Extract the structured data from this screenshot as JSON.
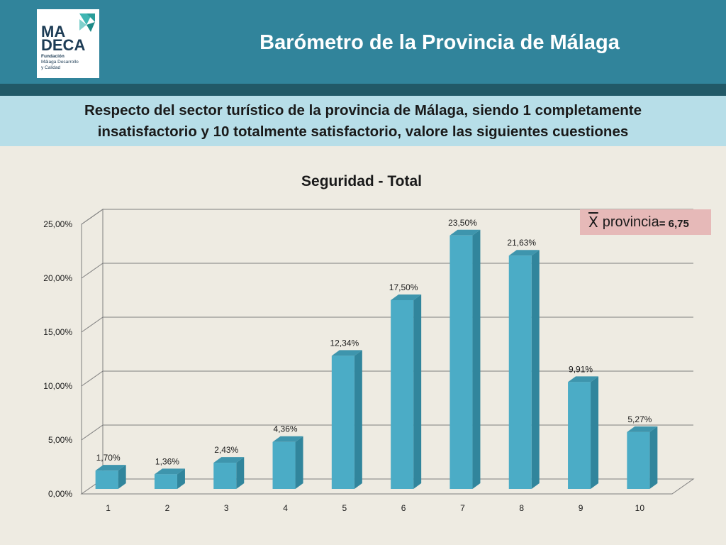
{
  "header": {
    "title": "Barómetro de la Provincia de Málaga",
    "logo_line1": "MA",
    "logo_line2": "DECA",
    "logo_sub1": "Fundación",
    "logo_sub2": "Málaga Desarrollo",
    "logo_sub3": "y Calidad",
    "color": "#31849b",
    "stripe_color": "#215967"
  },
  "question": {
    "line1": "Respecto del sector turístico de la provincia de Málaga, siendo 1 completamente",
    "line2": "insatisfactorio y 10 totalmente satisfactorio, valore las siguientes cuestiones"
  },
  "mean_badge": {
    "symbol": "X",
    "label": "provincia",
    "value": "= 6,75"
  },
  "chart_data": {
    "type": "bar",
    "title": "Seguridad - Total",
    "xlabel": "",
    "ylabel": "",
    "categories": [
      "1",
      "2",
      "3",
      "4",
      "5",
      "6",
      "7",
      "8",
      "9",
      "10"
    ],
    "values": [
      1.7,
      1.36,
      2.43,
      4.36,
      12.34,
      17.5,
      23.5,
      21.63,
      9.91,
      5.27
    ],
    "data_labels": [
      "1,70%",
      "1,36%",
      "2,43%",
      "4,36%",
      "12,34%",
      "17,50%",
      "23,50%",
      "21,63%",
      "9,91%",
      "5,27%"
    ],
    "y_ticks": [
      0,
      5,
      10,
      15,
      20,
      25
    ],
    "y_tick_labels": [
      "0,00%",
      "5,00%",
      "10,00%",
      "15,00%",
      "20,00%",
      "25,00%"
    ],
    "ylim": [
      0,
      25
    ],
    "grid": true,
    "bar_color": "#4bacc6",
    "bar_side_color": "#31859c",
    "bar_top_color": "#3e95ad"
  }
}
